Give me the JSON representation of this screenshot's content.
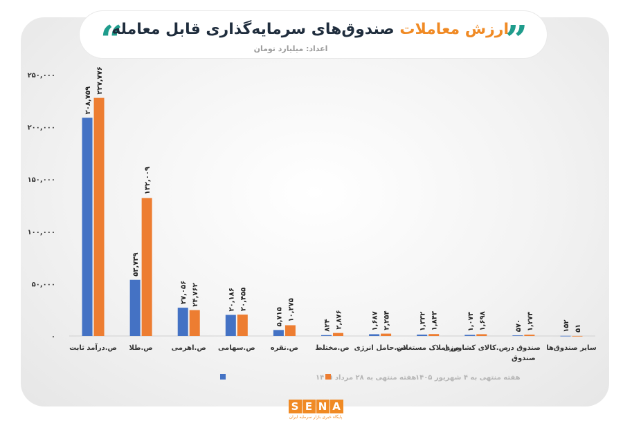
{
  "header": {
    "title_part1": "ارزش معاملات",
    "title_part2": "صندوق‌های سرمایه‌گذاری قابل معامله",
    "subtitle": "اعداد: میلیارد تومان",
    "quote_left": "“",
    "quote_right": "”"
  },
  "colors": {
    "series1": "#4472c4",
    "series2": "#ed7d31",
    "teal": "#1f9c8c",
    "orange_accent": "#f08a24"
  },
  "chart_data": {
    "type": "bar",
    "categories": [
      "ص.درآمد ثابت",
      "ص.طلا",
      "ص.اهرمی",
      "ص.سهامی",
      "ص.نقره",
      "ص.مختلط",
      "ص.حامل انرژی",
      "ص.املاک مستغلات",
      "ص.کالای کشاورزی",
      "صندوق در صندوق",
      "سایر صندوق‌ها"
    ],
    "series": [
      {
        "name": "هفته منتهی به ۲۸ مرداد ۱۴۰۵",
        "values": [
          208759,
          53739,
          27056,
          20186,
          5715,
          824,
          1687,
          1332,
          1073,
          570,
          152
        ],
        "labels": [
          "۲۰۸,۷۵۹",
          "۵۳,۷۳۹",
          "۲۷,۰۵۶",
          "۲۰,۱۸۶",
          "۵,۷۱۵",
          "۸۲۴",
          "۱,۶۸۷",
          "۱,۳۳۲",
          "۱,۰۷۳",
          "۵۷۰",
          "۱۵۲"
        ]
      },
      {
        "name": "هفته منتهی به ۴ شهریور ۱۴۰۵",
        "values": [
          227776,
          132009,
          24762,
          20455,
          10275,
          2876,
          2254,
          1843,
          1698,
          1273,
          51
        ],
        "labels": [
          "۲۲۷,۷۷۶",
          "۱۳۲,۰۰۹",
          "۲۴,۷۶۲",
          "۲۰,۴۵۵",
          "۱۰,۲۷۵",
          "۲,۸۷۶",
          "۲,۲۵۴",
          "۱,۸۴۳",
          "۱,۶۹۸",
          "۱,۲۷۳",
          "۵۱"
        ]
      }
    ],
    "yticks": [
      0,
      50000,
      100000,
      150000,
      200000,
      250000
    ],
    "ytick_labels": [
      "۰",
      "۵۰,۰۰۰",
      "۱۰۰,۰۰۰",
      "۱۵۰,۰۰۰",
      "۲۰۰,۰۰۰",
      "۲۵۰,۰۰۰"
    ],
    "ylim": [
      0,
      250000
    ],
    "grid": false,
    "legend": "bottom"
  },
  "footer": {
    "logo_letters": [
      "S",
      "E",
      "N",
      "A"
    ],
    "logo_sub": "پایگاه خبری بازار سرمایه ایران"
  }
}
